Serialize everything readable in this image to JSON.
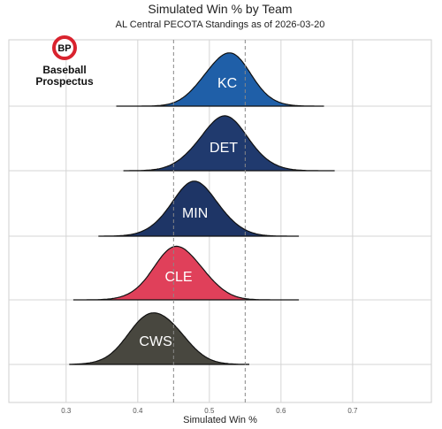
{
  "chart_data": {
    "type": "area",
    "title": "Simulated Win % by Team",
    "subtitle": "AL Central PECOTA Standings as of 2026-03-20",
    "xlabel": "Simulated Win %",
    "ylabel": "",
    "xlim": [
      0.22,
      0.81
    ],
    "x_ticks": [
      "0.3",
      "0.4",
      "0.5",
      "0.6",
      "0.7"
    ],
    "x_tick_values": [
      0.3,
      0.4,
      0.5,
      0.6,
      0.7
    ],
    "reference_lines": [
      0.45,
      0.55
    ],
    "grid": true,
    "legend": "none",
    "series": [
      {
        "name": "KC",
        "color": "#1f5fa8",
        "mean": 0.525,
        "sd": 0.032,
        "min": 0.37,
        "max": 0.66
      },
      {
        "name": "DET",
        "color": "#203a6e",
        "mean": 0.52,
        "sd": 0.035,
        "min": 0.38,
        "max": 0.675
      },
      {
        "name": "MIN",
        "color": "#1e3566",
        "mean": 0.48,
        "sd": 0.034,
        "min": 0.345,
        "max": 0.625
      },
      {
        "name": "CLE",
        "color": "#e0405a",
        "mean": 0.457,
        "sd": 0.034,
        "min": 0.31,
        "max": 0.625
      },
      {
        "name": "CWS",
        "color": "#48473f",
        "mean": 0.425,
        "sd": 0.035,
        "min": 0.305,
        "max": 0.555
      }
    ]
  },
  "logo": {
    "badge": "BP",
    "line1": "Baseball",
    "line2": "Prospectus"
  }
}
